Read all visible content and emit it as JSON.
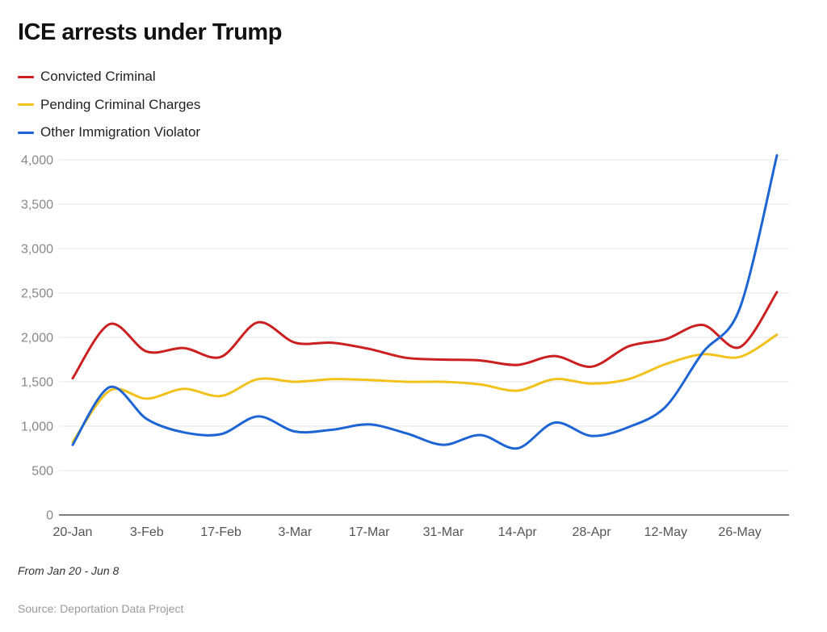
{
  "chart_data": {
    "type": "line",
    "title": "ICE arrests under Trump",
    "note": "From Jan 20 - Jun 8",
    "source": "Source: Deportation Data Project",
    "legend_position": "top-left",
    "grid": true,
    "ylim": [
      0,
      4000
    ],
    "yticks": [
      0,
      500,
      1000,
      1500,
      2000,
      2500,
      3000,
      3500,
      4000
    ],
    "ytick_labels": [
      "0",
      "500",
      "1,000",
      "1,500",
      "2,000",
      "2,500",
      "3,000",
      "3,500",
      "4,000"
    ],
    "x": [
      "20-Jan",
      "27-Jan",
      "3-Feb",
      "10-Feb",
      "17-Feb",
      "24-Feb",
      "3-Mar",
      "10-Mar",
      "17-Mar",
      "24-Mar",
      "31-Mar",
      "7-Apr",
      "14-Apr",
      "21-Apr",
      "28-Apr",
      "5-May",
      "12-May",
      "19-May",
      "26-May",
      "2-Jun"
    ],
    "xtick_labels": [
      "20-Jan",
      "3-Feb",
      "17-Feb",
      "3-Mar",
      "17-Mar",
      "31-Mar",
      "14-Apr",
      "28-Apr",
      "12-May",
      "26-May"
    ],
    "series": [
      {
        "name": "Convicted Criminal",
        "color": "#cc1f1f",
        "values": [
          1540,
          2150,
          1840,
          1880,
          1780,
          2170,
          1940,
          1940,
          1870,
          1770,
          1750,
          1740,
          1690,
          1790,
          1670,
          1900,
          1980,
          2140,
          1890,
          2510
        ]
      },
      {
        "name": "Pending Criminal Charges",
        "color": "#f2c21b",
        "values": [
          820,
          1400,
          1310,
          1420,
          1340,
          1530,
          1500,
          1530,
          1520,
          1500,
          1500,
          1470,
          1400,
          1530,
          1480,
          1530,
          1700,
          1810,
          1780,
          2030
        ]
      },
      {
        "name": "Other Immigration Violator",
        "color": "#1d64d4",
        "values": [
          790,
          1440,
          1080,
          930,
          910,
          1110,
          940,
          960,
          1020,
          920,
          790,
          900,
          750,
          1040,
          890,
          990,
          1220,
          1830,
          2330,
          4050
        ]
      }
    ]
  }
}
